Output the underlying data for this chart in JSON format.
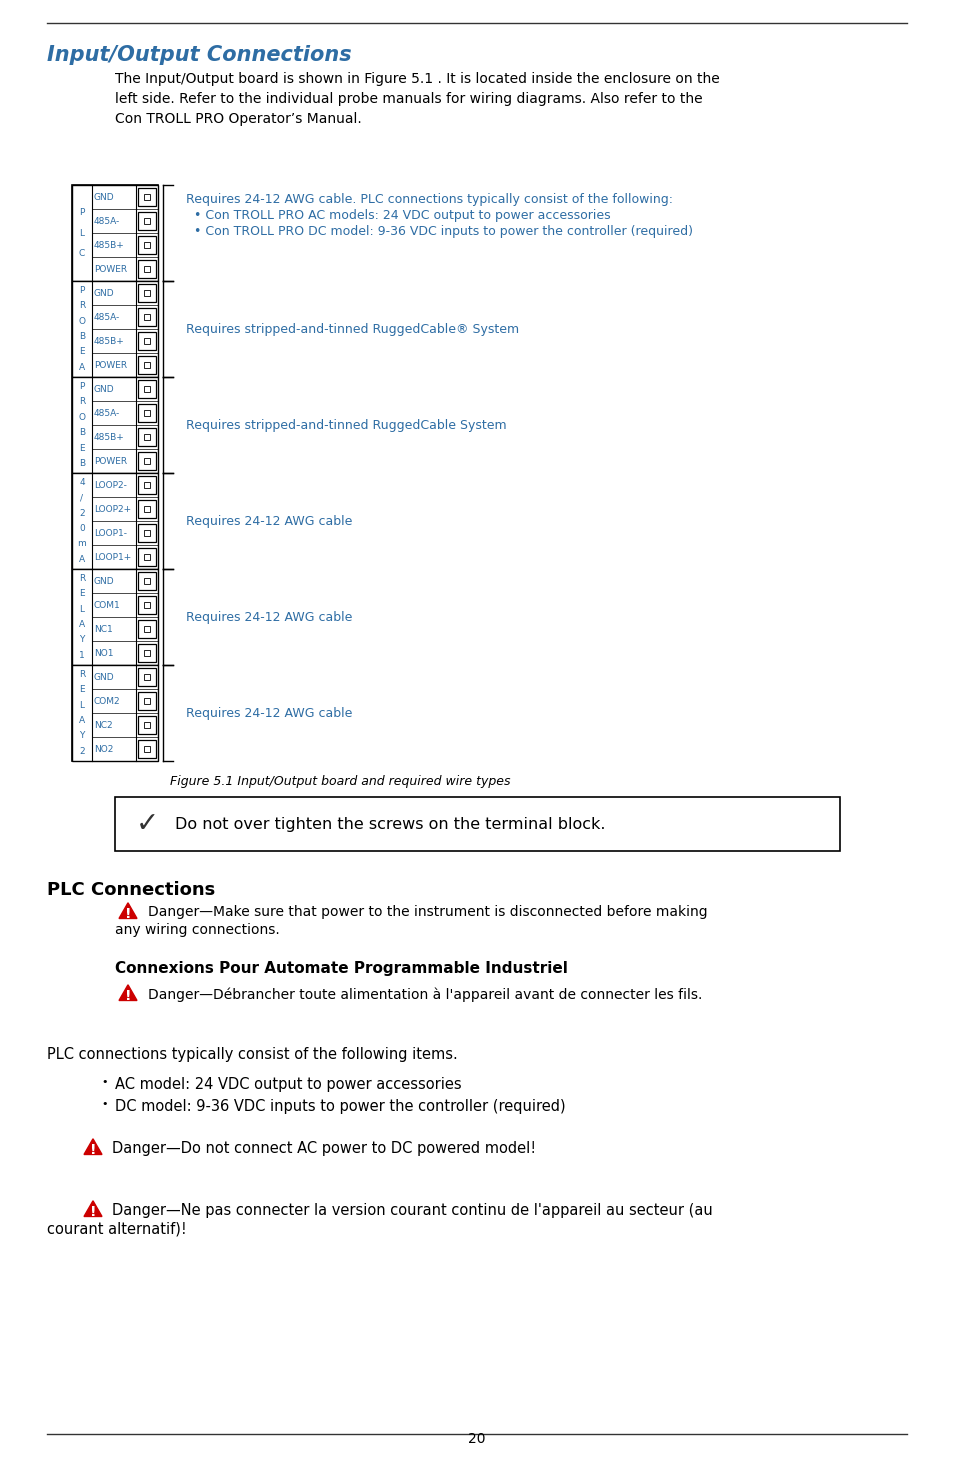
{
  "bg_color": "#ffffff",
  "title_text": "Input/Output Connections",
  "title_color": "#2e6da4",
  "intro_text": "The Input/Output board is shown in Figure 5.1 . It is located inside the enclosure on the\nleft side. Refer to the individual probe manuals for wiring diagrams. Also refer to the\nCon TROLL PRO Operator’s Manual.",
  "figure_caption": "Figure 5.1 Input/Output board and required wire types",
  "checkmark_note": "Do not over tighten the screws on the terminal block.",
  "plc_heading": "PLC Connections",
  "danger1_line1": "Danger—Make sure that power to the instrument is disconnected before making",
  "danger1_line2": "any wiring connections.",
  "connexions_heading": "Connexions Pour Automate Programmable Industriel",
  "danger2": "Danger—Débrancher toute alimentation à l'appareil avant de connecter les fils.",
  "plc_intro": "PLC connections typically consist of the following items.",
  "bullet1": "AC model: 24 VDC output to power accessories",
  "bullet2": "DC model: 9-36 VDC inputs to power the controller (required)",
  "danger3": "Danger—Do not connect AC power to DC powered model!",
  "danger4_line1": "Danger—Ne pas connecter la version courant continu de l'appareil au secteur (au",
  "danger4_line2": "courant alternatif)!",
  "page_number": "20",
  "diagram_sections": [
    {
      "label_chars": [
        "P",
        "L",
        "C"
      ],
      "rows": [
        "GND",
        "485A-",
        "485B+",
        "POWER"
      ],
      "desc_lines": [
        "Requires 24-12 AWG cable. PLC connections typically consist of the following:",
        "  • Con TROLL PRO AC models: 24 VDC output to power accessories",
        "  • Con TROLL PRO DC model: 9-36 VDC inputs to power the controller (required)"
      ]
    },
    {
      "label_chars": [
        "P",
        "R",
        "O",
        "B",
        "E",
        "A"
      ],
      "rows": [
        "GND",
        "485A-",
        "485B+",
        "POWER"
      ],
      "desc_lines": [
        "Requires stripped-and-tinned RuggedCable® System"
      ]
    },
    {
      "label_chars": [
        "P",
        "R",
        "O",
        "B",
        "E",
        "B"
      ],
      "rows": [
        "GND",
        "485A-",
        "485B+",
        "POWER"
      ],
      "desc_lines": [
        "Requires stripped-and-tinned RuggedCable System"
      ]
    },
    {
      "label_chars": [
        "4",
        "/",
        "2",
        "0",
        "m",
        "A"
      ],
      "rows": [
        "LOOP2-",
        "LOOP2+",
        "LOOP1-",
        "LOOP1+"
      ],
      "desc_lines": [
        "Requires 24-12 AWG cable"
      ]
    },
    {
      "label_chars": [
        "R",
        "E",
        "L",
        "A",
        "Y",
        "1"
      ],
      "rows": [
        "GND",
        "COM1",
        "NC1",
        "NO1"
      ],
      "desc_lines": [
        "Requires 24-12 AWG cable"
      ]
    },
    {
      "label_chars": [
        "R",
        "E",
        "L",
        "A",
        "Y",
        "2"
      ],
      "rows": [
        "GND",
        "COM2",
        "NC2",
        "NO2"
      ],
      "desc_lines": [
        "Requires 24-12 AWG cable"
      ]
    }
  ]
}
